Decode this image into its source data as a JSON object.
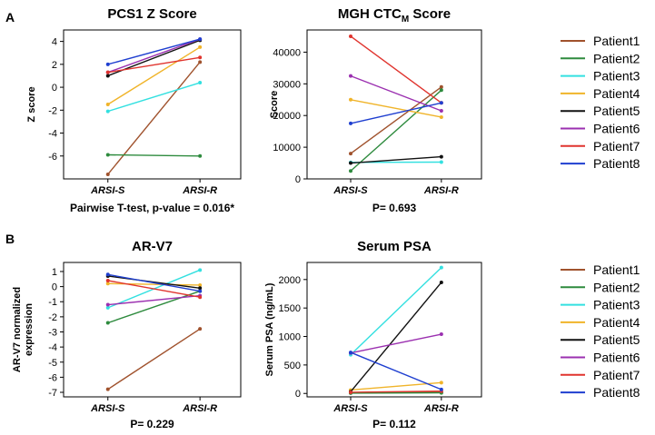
{
  "panel_labels": [
    "A",
    "B"
  ],
  "legend": {
    "entries": [
      {
        "name": "Patient1",
        "color": "#a0522d"
      },
      {
        "name": "Patient2",
        "color": "#2e8b3e"
      },
      {
        "name": "Patient3",
        "color": "#33e0e0"
      },
      {
        "name": "Patient4",
        "color": "#f0b42a"
      },
      {
        "name": "Patient5",
        "color": "#111111"
      },
      {
        "name": "Patient6",
        "color": "#9b30b0"
      },
      {
        "name": "Patient7",
        "color": "#e0342e"
      },
      {
        "name": "Patient8",
        "color": "#1f3fd0"
      }
    ]
  },
  "chart_data": [
    {
      "type": "line",
      "title": "PCS1 Z Score",
      "ylabel": "Z score",
      "xlabel": "",
      "categories": [
        "ARSI-S",
        "ARSI-R"
      ],
      "ylim": [
        -8,
        5
      ],
      "yticks": [
        4,
        2,
        0,
        -2,
        -4,
        -6
      ],
      "ytick_labels": [
        "4",
        "2",
        "0",
        "-2",
        "-4",
        "-6"
      ],
      "caption": "Pairwise T-test, p-value = 0.016*",
      "series": [
        {
          "name": "Patient1",
          "values": [
            -7.6,
            2.2
          ]
        },
        {
          "name": "Patient2",
          "values": [
            -5.9,
            -6.0
          ]
        },
        {
          "name": "Patient3",
          "values": [
            -2.1,
            0.4
          ]
        },
        {
          "name": "Patient4",
          "values": [
            -1.5,
            3.5
          ]
        },
        {
          "name": "Patient5",
          "values": [
            1.0,
            4.1
          ]
        },
        {
          "name": "Patient6",
          "values": [
            1.3,
            4.2
          ]
        },
        {
          "name": "Patient7",
          "values": [
            1.3,
            2.6
          ]
        },
        {
          "name": "Patient8",
          "values": [
            2.0,
            4.2
          ]
        }
      ]
    },
    {
      "type": "line",
      "title": "MGH CTC",
      "title_subscript": "M",
      "title_suffix": " Score",
      "ylabel": "Score",
      "xlabel": "",
      "categories": [
        "ARSI-S",
        "ARSI-R"
      ],
      "ylim": [
        0,
        47000
      ],
      "yticks": [
        0,
        10000,
        20000,
        30000,
        40000
      ],
      "ytick_labels": [
        "0",
        "10000",
        "20000",
        "30000",
        "40000"
      ],
      "caption": "P= 0.693",
      "series": [
        {
          "name": "Patient1",
          "values": [
            8000,
            29000
          ]
        },
        {
          "name": "Patient2",
          "values": [
            2500,
            28000
          ]
        },
        {
          "name": "Patient3",
          "values": [
            5200,
            5300
          ]
        },
        {
          "name": "Patient4",
          "values": [
            25000,
            19500
          ]
        },
        {
          "name": "Patient5",
          "values": [
            5000,
            7000
          ]
        },
        {
          "name": "Patient6",
          "values": [
            32500,
            21500
          ]
        },
        {
          "name": "Patient7",
          "values": [
            45000,
            24000
          ]
        },
        {
          "name": "Patient8",
          "values": [
            17500,
            24000
          ]
        }
      ]
    },
    {
      "type": "line",
      "title": "AR-V7",
      "ylabel": "AR-V7 normalized expression",
      "ylabel_lines": [
        "AR-V7 normalized",
        "expression"
      ],
      "xlabel": "",
      "categories": [
        "ARSI-S",
        "ARSI-R"
      ],
      "ylim": [
        -7.3,
        1.6
      ],
      "yticks": [
        1,
        0,
        -1,
        -2,
        -3,
        -4,
        -5,
        -6,
        -7
      ],
      "ytick_labels": [
        "1",
        "0",
        "-1",
        "-2",
        "-3",
        "-4",
        "-5",
        "-6",
        "-7"
      ],
      "caption": "P= 0.229",
      "series": [
        {
          "name": "Patient1",
          "values": [
            -6.8,
            -2.8
          ]
        },
        {
          "name": "Patient2",
          "values": [
            -2.4,
            -0.3
          ]
        },
        {
          "name": "Patient3",
          "values": [
            -1.4,
            1.1
          ]
        },
        {
          "name": "Patient4",
          "values": [
            0.2,
            0.1
          ]
        },
        {
          "name": "Patient5",
          "values": [
            0.7,
            -0.1
          ]
        },
        {
          "name": "Patient6",
          "values": [
            -1.2,
            -0.6
          ]
        },
        {
          "name": "Patient7",
          "values": [
            0.4,
            -0.7
          ]
        },
        {
          "name": "Patient8",
          "values": [
            0.8,
            -0.3
          ]
        }
      ]
    },
    {
      "type": "line",
      "title": "Serum PSA",
      "ylabel": "Serum PSA (ng/mL)",
      "xlabel": "",
      "categories": [
        "ARSI-S",
        "ARSI-R"
      ],
      "ylim": [
        -60,
        2300
      ],
      "yticks": [
        0,
        500,
        1000,
        1500,
        2000
      ],
      "ytick_labels": [
        "0",
        "500",
        "1000",
        "1500",
        "2000"
      ],
      "caption": "P= 0.112",
      "series": [
        {
          "name": "Patient1",
          "values": [
            10,
            20
          ]
        },
        {
          "name": "Patient2",
          "values": [
            5,
            10
          ]
        },
        {
          "name": "Patient3",
          "values": [
            680,
            2210
          ]
        },
        {
          "name": "Patient4",
          "values": [
            60,
            190
          ]
        },
        {
          "name": "Patient5",
          "values": [
            30,
            1950
          ]
        },
        {
          "name": "Patient6",
          "values": [
            710,
            1040
          ]
        },
        {
          "name": "Patient7",
          "values": [
            20,
            40
          ]
        },
        {
          "name": "Patient8",
          "values": [
            720,
            70
          ]
        }
      ]
    }
  ]
}
